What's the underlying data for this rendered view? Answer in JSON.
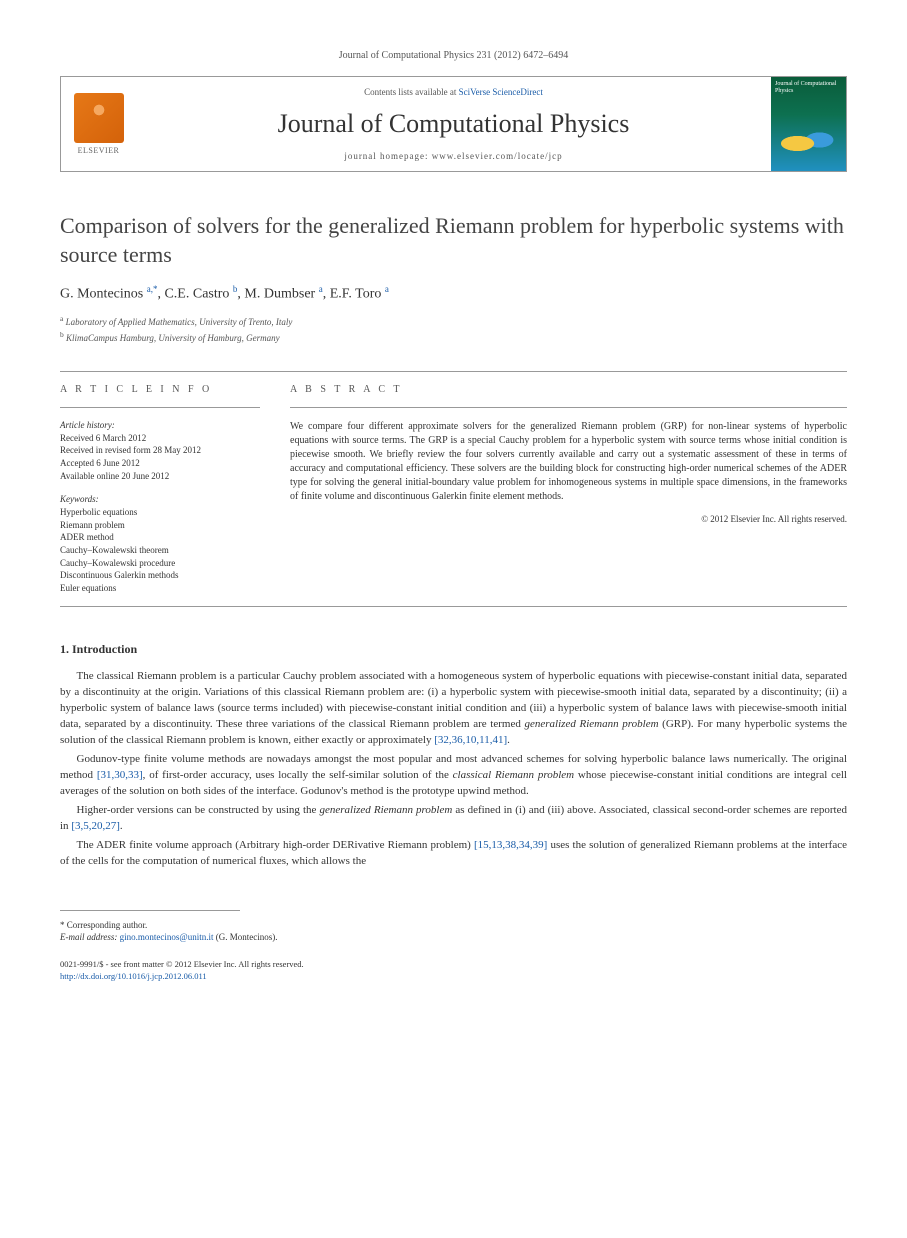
{
  "journal_ref": "Journal of Computational Physics 231 (2012) 6472–6494",
  "header": {
    "contents_prefix": "Contents lists available at ",
    "contents_link": "SciVerse ScienceDirect",
    "journal_title": "Journal of Computational Physics",
    "homepage_label": "journal homepage: www.elsevier.com/locate/jcp",
    "publisher": "ELSEVIER",
    "cover_title": "Journal of Computational Physics"
  },
  "article": {
    "title": "Comparison of solvers for the generalized Riemann problem for hyperbolic systems with source terms",
    "authors_html": "G. Montecinos <sup>a,*</sup>, C.E. Castro <sup>b</sup>, M. Dumbser <sup>a</sup>, E.F. Toro <sup>a</sup>",
    "affiliations": [
      {
        "sup": "a",
        "text": "Laboratory of Applied Mathematics, University of Trento, Italy"
      },
      {
        "sup": "b",
        "text": "KlimaCampus Hamburg, University of Hamburg, Germany"
      }
    ]
  },
  "info": {
    "heading": "A R T I C L E   I N F O",
    "history_label": "Article history:",
    "history": "Received 6 March 2012\nReceived in revised form 28 May 2012\nAccepted 6 June 2012\nAvailable online 20 June 2012",
    "keywords_label": "Keywords:",
    "keywords": "Hyperbolic equations\nRiemann problem\nADER method\nCauchy–Kowalewski theorem\nCauchy–Kowalewski procedure\nDiscontinuous Galerkin methods\nEuler equations"
  },
  "abstract": {
    "heading": "A B S T R A C T",
    "text": "We compare four different approximate solvers for the generalized Riemann problem (GRP) for non-linear systems of hyperbolic equations with source terms. The GRP is a special Cauchy problem for a hyperbolic system with source terms whose initial condition is piecewise smooth. We briefly review the four solvers currently available and carry out a systematic assessment of these in terms of accuracy and computational efficiency. These solvers are the building block for constructing high-order numerical schemes of the ADER type for solving the general initial-boundary value problem for inhomogeneous systems in multiple space dimensions, in the frameworks of finite volume and discontinuous Galerkin finite element methods.",
    "copyright": "© 2012 Elsevier Inc. All rights reserved."
  },
  "section1": {
    "heading": "1. Introduction",
    "p1_a": "The classical Riemann problem is a particular Cauchy problem associated with a homogeneous system of hyperbolic equations with piecewise-constant initial data, separated by a discontinuity at the origin. Variations of this classical Riemann problem are: (i) a hyperbolic system with piecewise-smooth initial data, separated by a discontinuity; (ii) a hyperbolic system of balance laws (source terms included) with piecewise-constant initial condition and (iii) a hyperbolic system of balance laws with piecewise-smooth initial data, separated by a discontinuity. These three variations of the classical Riemann problem are termed ",
    "p1_em": "generalized Riemann problem",
    "p1_b": " (GRP). For many hyperbolic systems the solution of the classical Riemann problem is known, either exactly or approximately ",
    "p1_refs": "[32,36,10,11,41]",
    "p1_c": ".",
    "p2_a": "Godunov-type finite volume methods are nowadays amongst the most popular and most advanced schemes for solving hyperbolic balance laws numerically. The original method ",
    "p2_refs1": "[31,30,33]",
    "p2_b": ", of first-order accuracy, uses locally the self-similar solution of the ",
    "p2_em": "classical Riemann problem",
    "p2_c": " whose piecewise-constant initial conditions are integral cell averages of the solution on both sides of the interface. Godunov's method is the prototype upwind method.",
    "p3_a": "Higher-order versions can be constructed by using the ",
    "p3_em": "generalized Riemann problem",
    "p3_b": " as defined in (i) and (iii) above. Associated, classical second-order schemes are reported in ",
    "p3_refs": "[3,5,20,27]",
    "p3_c": ".",
    "p4_a": "The ADER finite volume approach (Arbitrary high-order DERivative Riemann problem) ",
    "p4_refs": "[15,13,38,34,39]",
    "p4_b": " uses the solution of generalized Riemann problems at the interface of the cells for the computation of numerical fluxes, which allows the"
  },
  "footer": {
    "corr_label": "* Corresponding author.",
    "email_label": "E-mail address:",
    "email": "gino.montecinos@unitn.it",
    "email_author": " (G. Montecinos).",
    "issn_line": "0021-9991/$ - see front matter © 2012 Elsevier Inc. All rights reserved.",
    "doi": "http://dx.doi.org/10.1016/j.jcp.2012.06.011"
  }
}
